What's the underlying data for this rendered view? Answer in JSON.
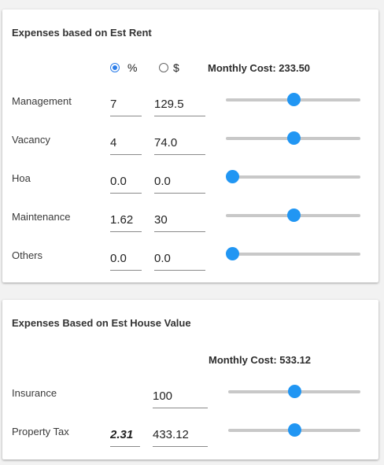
{
  "rent_card": {
    "title": "Expenses based on Est Rent",
    "unit_options": [
      "%",
      "$"
    ],
    "selected_unit": "%",
    "monthly_cost_label": "Monthly Cost: 233.50",
    "rows": [
      {
        "label": "Management",
        "percent": "7",
        "dollar": "129.5",
        "slider_fraction": 0.5
      },
      {
        "label": "Vacancy",
        "percent": "4",
        "dollar": "74.0",
        "slider_fraction": 0.5
      },
      {
        "label": "Hoa",
        "percent": "0.0",
        "dollar": "0.0",
        "slider_fraction": 0.0
      },
      {
        "label": "Maintenance",
        "percent": "1.62",
        "dollar": "30",
        "slider_fraction": 0.5
      },
      {
        "label": "Others",
        "percent": "0.0",
        "dollar": "0.0",
        "slider_fraction": 0.0
      }
    ]
  },
  "house_card": {
    "title": "Expenses Based on Est House Value",
    "monthly_cost_label": "Monthly Cost: 533.12",
    "rows": [
      {
        "label": "Insurance",
        "percent": "",
        "dollar": "100",
        "slider_fraction": 0.5
      },
      {
        "label": "Property Tax",
        "percent": "2.31",
        "dollar": "433.12",
        "slider_fraction": 0.5
      }
    ]
  },
  "colors": {
    "accent": "#2196f3",
    "radio_accent": "#2b7de9",
    "track": "#c8c8c8",
    "background": "#f2f2f2"
  }
}
